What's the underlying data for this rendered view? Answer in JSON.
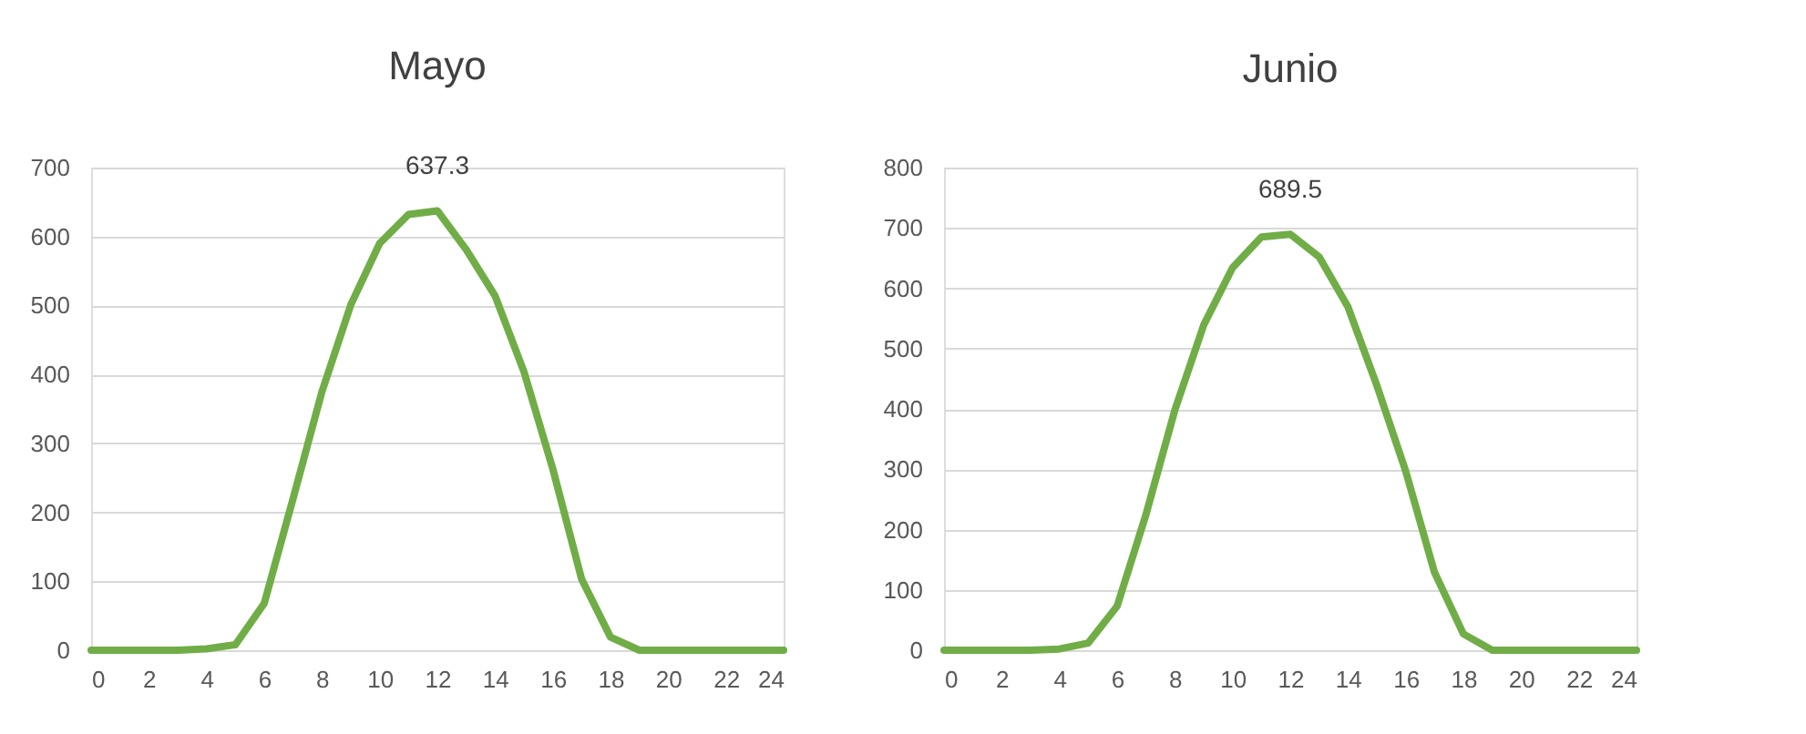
{
  "chart_data": [
    {
      "type": "line",
      "title": "Mayo",
      "x": [
        0,
        1,
        2,
        3,
        4,
        5,
        6,
        7,
        8,
        9,
        10,
        11,
        12,
        13,
        14,
        15,
        16,
        17,
        18,
        19,
        20,
        21,
        22,
        23,
        24
      ],
      "series": [
        {
          "color": "#70ad47",
          "values": [
            0,
            0,
            0,
            0,
            2,
            8,
            68,
            220,
            375,
            501,
            590,
            632,
            637.3,
            581,
            514,
            404,
            263,
            103,
            19,
            0,
            0,
            0,
            0,
            0,
            0
          ],
          "value_labels": [
            null,
            null,
            null,
            null,
            null,
            null,
            null,
            null,
            null,
            null,
            null,
            null,
            "637.3",
            null,
            null,
            null,
            null,
            null,
            null,
            null,
            null,
            null,
            null,
            null,
            null
          ]
        }
      ],
      "xlim": [
        0,
        24
      ],
      "xticks": [
        0,
        2,
        4,
        6,
        8,
        10,
        12,
        14,
        16,
        18,
        20,
        22,
        24
      ],
      "ylim": [
        0,
        700
      ],
      "yticks": [
        0,
        100,
        200,
        300,
        400,
        500,
        600,
        700
      ],
      "grid": "y",
      "marker": "none",
      "line_style": "solid"
    },
    {
      "type": "line",
      "title": "Junio",
      "x": [
        0,
        1,
        2,
        3,
        4,
        5,
        6,
        7,
        8,
        9,
        10,
        11,
        12,
        13,
        14,
        15,
        16,
        17,
        18,
        19,
        20,
        21,
        22,
        23,
        24
      ],
      "series": [
        {
          "color": "#70ad47",
          "values": [
            0,
            0,
            0,
            0,
            2,
            12,
            73,
            225,
            398,
            539,
            634,
            685,
            689.5,
            652,
            569,
            439,
            297,
            129,
            27,
            0,
            0,
            0,
            0,
            0,
            0
          ],
          "value_labels": [
            null,
            null,
            null,
            null,
            null,
            null,
            null,
            null,
            null,
            null,
            null,
            null,
            "689.5",
            null,
            null,
            null,
            null,
            null,
            null,
            null,
            null,
            null,
            null,
            null,
            null
          ]
        }
      ],
      "xlim": [
        0,
        24
      ],
      "xticks": [
        0,
        2,
        4,
        6,
        8,
        10,
        12,
        14,
        16,
        18,
        20,
        22,
        24
      ],
      "ylim": [
        0,
        800
      ],
      "yticks": [
        0,
        100,
        200,
        300,
        400,
        500,
        600,
        700,
        800
      ],
      "grid": "y",
      "marker": "none",
      "line_style": "solid"
    }
  ]
}
